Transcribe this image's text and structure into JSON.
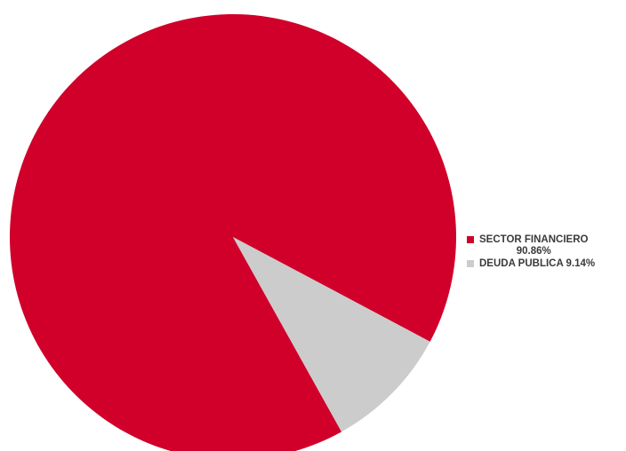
{
  "chart_data": {
    "type": "pie",
    "title": "",
    "slices": [
      {
        "label": "SECTOR FINANCIERO",
        "value": 90.86,
        "color": "#d0002a"
      },
      {
        "label": "DEUDA PUBLICA",
        "value": 9.14,
        "color": "#cccccc"
      }
    ],
    "legend_position": "right"
  },
  "legend": {
    "items": [
      {
        "text": "SECTOR FINANCIERO\n90.86%",
        "color": "#d0002a"
      },
      {
        "text": "DEUDA PUBLICA 9.14%",
        "color": "#cccccc"
      }
    ]
  }
}
